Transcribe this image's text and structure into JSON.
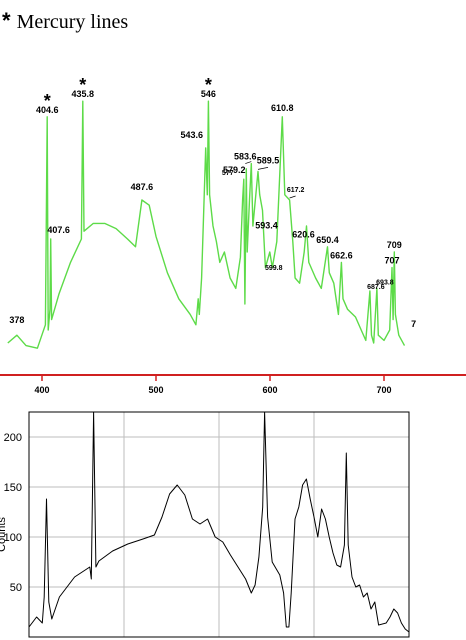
{
  "title": {
    "marker": "*",
    "text": "Mercury lines"
  },
  "chart_data": [
    {
      "type": "line",
      "title": "",
      "xlabel": "",
      "ylabel": "",
      "line_color": "#5ddb48",
      "axis_color": "#d02020",
      "xlim": [
        370,
        720
      ],
      "ylim": [
        0,
        100
      ],
      "x_ticks": [
        400,
        500,
        600,
        700
      ],
      "series": [
        {
          "values": [
            [
              370,
              5
            ],
            [
              378,
              8
            ],
            [
              386,
              4
            ],
            [
              396,
              3
            ],
            [
              403,
              12
            ],
            [
              404.6,
              92
            ],
            [
              405.4,
              10
            ],
            [
              407,
              18
            ],
            [
              407.6,
              45
            ],
            [
              408.4,
              14
            ],
            [
              415,
              24
            ],
            [
              425,
              36
            ],
            [
              434.6,
              45
            ],
            [
              435.8,
              98
            ],
            [
              436.8,
              48
            ],
            [
              445,
              51
            ],
            [
              455,
              51
            ],
            [
              465,
              49
            ],
            [
              475,
              45
            ],
            [
              482,
              42
            ],
            [
              487.6,
              60
            ],
            [
              494,
              58
            ],
            [
              500,
              46
            ],
            [
              510,
              32
            ],
            [
              520,
              22
            ],
            [
              530,
              16
            ],
            [
              535,
              12
            ],
            [
              537,
              22
            ],
            [
              538,
              16
            ],
            [
              540,
              30
            ],
            [
              543.6,
              80
            ],
            [
              545,
              62
            ],
            [
              546,
              98
            ],
            [
              547,
              62
            ],
            [
              550,
              50
            ],
            [
              553,
              44
            ],
            [
              556,
              36
            ],
            [
              560,
              40
            ],
            [
              565,
              30
            ],
            [
              570,
              26
            ],
            [
              574,
              38
            ],
            [
              576,
              60
            ],
            [
              577,
              68
            ],
            [
              578,
              20
            ],
            [
              579.2,
              72
            ],
            [
              580,
              40
            ],
            [
              582,
              60
            ],
            [
              583.6,
              74
            ],
            [
              585,
              50
            ],
            [
              589.5,
              71
            ],
            [
              591,
              62
            ],
            [
              593.4,
              56
            ],
            [
              596,
              34
            ],
            [
              599.8,
              40
            ],
            [
              602,
              34
            ],
            [
              606,
              44
            ],
            [
              610.8,
              92
            ],
            [
              613,
              62
            ],
            [
              617.2,
              60
            ],
            [
              620,
              44
            ],
            [
              622,
              30
            ],
            [
              626,
              28
            ],
            [
              630,
              40
            ],
            [
              632,
              50
            ],
            [
              634,
              36
            ],
            [
              640,
              30
            ],
            [
              645,
              26
            ],
            [
              650.4,
              42
            ],
            [
              652,
              32
            ],
            [
              656,
              28
            ],
            [
              660,
              16
            ],
            [
              662.6,
              36
            ],
            [
              664,
              22
            ],
            [
              668,
              18
            ],
            [
              675,
              15
            ],
            [
              680,
              10
            ],
            [
              684,
              6
            ],
            [
              687.6,
              25
            ],
            [
              689,
              8
            ],
            [
              691,
              5
            ],
            [
              693.8,
              26
            ],
            [
              695,
              8
            ],
            [
              700,
              6
            ],
            [
              705,
              10
            ],
            [
              707,
              34
            ],
            [
              708,
              14
            ],
            [
              709,
              40
            ],
            [
              710,
              16
            ],
            [
              713,
              8
            ],
            [
              718,
              4
            ]
          ]
        }
      ],
      "peak_labels": [
        {
          "x": 378,
          "label": "378"
        },
        {
          "x": 404.6,
          "label": "404.6",
          "mercury": true
        },
        {
          "x": 407.6,
          "label": "407.6"
        },
        {
          "x": 435.8,
          "label": "435.8",
          "mercury": true
        },
        {
          "x": 487.6,
          "label": "487.6"
        },
        {
          "x": 543.6,
          "label": "543.6"
        },
        {
          "x": 546,
          "label": "546",
          "mercury": true
        },
        {
          "x": 577,
          "label": "577",
          "small": true
        },
        {
          "x": 579.2,
          "label": "579.2"
        },
        {
          "x": 583.6,
          "label": "583.6"
        },
        {
          "x": 589.5,
          "label": "589.5"
        },
        {
          "x": 593.4,
          "label": "593.4"
        },
        {
          "x": 599.8,
          "label": "599.8",
          "small": true
        },
        {
          "x": 610.8,
          "label": "610.8"
        },
        {
          "x": 617.2,
          "label": "617.2",
          "small": true
        },
        {
          "x": 620.6,
          "label": "620.6"
        },
        {
          "x": 650.4,
          "label": "650.4"
        },
        {
          "x": 662.6,
          "label": "662.6"
        },
        {
          "x": 687.6,
          "label": "687.6",
          "small": true
        },
        {
          "x": 693.8,
          "label": "693.8",
          "small": true
        },
        {
          "x": 707,
          "label": "707"
        },
        {
          "x": 709,
          "label": "709"
        },
        {
          "x": 712,
          "label": "7"
        }
      ]
    },
    {
      "type": "line",
      "title": "",
      "xlabel": "",
      "ylabel": "Counts",
      "line_color": "#000000",
      "grid": true,
      "xlim": [
        0,
        100
      ],
      "ylim": [
        0,
        225
      ],
      "y_ticks": [
        50,
        100,
        150,
        200
      ],
      "series": [
        {
          "values": [
            [
              0,
              10
            ],
            [
              2,
              20
            ],
            [
              3.5,
              14
            ],
            [
              4,
              40
            ],
            [
              4.6,
              138
            ],
            [
              5.2,
              35
            ],
            [
              6,
              18
            ],
            [
              8,
              40
            ],
            [
              12,
              60
            ],
            [
              16,
              70
            ],
            [
              16.4,
              58
            ],
            [
              17,
              225
            ],
            [
              17.6,
              70
            ],
            [
              18.4,
              76
            ],
            [
              22,
              86
            ],
            [
              26,
              93
            ],
            [
              30,
              98
            ],
            [
              33,
              102
            ],
            [
              35,
              120
            ],
            [
              37,
              143
            ],
            [
              39,
              152
            ],
            [
              41,
              142
            ],
            [
              43,
              118
            ],
            [
              45,
              113
            ],
            [
              47,
              118
            ],
            [
              49,
              100
            ],
            [
              51,
              95
            ],
            [
              53,
              82
            ],
            [
              55,
              70
            ],
            [
              57,
              58
            ],
            [
              58.5,
              44
            ],
            [
              59.5,
              52
            ],
            [
              60.5,
              80
            ],
            [
              61.5,
              130
            ],
            [
              62,
              225
            ],
            [
              62.8,
              120
            ],
            [
              64,
              75
            ],
            [
              66,
              62
            ],
            [
              67,
              44
            ],
            [
              67.7,
              10
            ],
            [
              68.4,
              10
            ],
            [
              69,
              44
            ],
            [
              70,
              118
            ],
            [
              71,
              130
            ],
            [
              72,
              152
            ],
            [
              73,
              158
            ],
            [
              74,
              138
            ],
            [
              75,
              120
            ],
            [
              76,
              100
            ],
            [
              77,
              128
            ],
            [
              78,
              118
            ],
            [
              79,
              100
            ],
            [
              80,
              84
            ],
            [
              81,
              72
            ],
            [
              82,
              70
            ],
            [
              83,
              92
            ],
            [
              83.5,
              184
            ],
            [
              84,
              92
            ],
            [
              85,
              60
            ],
            [
              86,
              50
            ],
            [
              87,
              52
            ],
            [
              88,
              40
            ],
            [
              89,
              44
            ],
            [
              90,
              28
            ],
            [
              91,
              35
            ],
            [
              92,
              12
            ],
            [
              94,
              14
            ],
            [
              95,
              20
            ],
            [
              96,
              28
            ],
            [
              97,
              24
            ],
            [
              98,
              14
            ],
            [
              99,
              8
            ],
            [
              100,
              5
            ]
          ]
        }
      ]
    }
  ]
}
